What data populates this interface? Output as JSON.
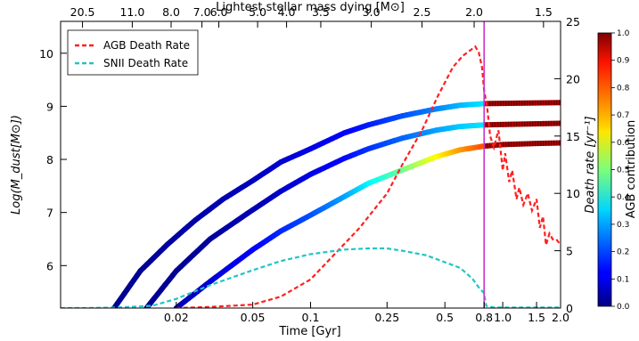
{
  "chart_data": {
    "type": "line",
    "xlabel": "Time [Gyr]",
    "x_scale": "log",
    "xlim": [
      0.005,
      2.0
    ],
    "x_ticks": [
      {
        "value": 0.02,
        "label": "0.02"
      },
      {
        "value": 0.05,
        "label": "0.05"
      },
      {
        "value": 0.1,
        "label": "0.1"
      },
      {
        "value": 0.25,
        "label": "0.25"
      },
      {
        "value": 0.5,
        "label": "0.5"
      },
      {
        "value": 0.8,
        "label": "0.8"
      },
      {
        "value": 1.0,
        "label": "1.0"
      },
      {
        "value": 1.5,
        "label": "1.5"
      },
      {
        "value": 2.0,
        "label": "2.0"
      }
    ],
    "top_axis": {
      "label": "Lightest stellar mass dying [M⊙]",
      "ticks": [
        {
          "time": 0.0065,
          "label": "20.5"
        },
        {
          "time": 0.0118,
          "label": "11.0"
        },
        {
          "time": 0.0188,
          "label": "8.0"
        },
        {
          "time": 0.0272,
          "label": "7.0"
        },
        {
          "time": 0.0333,
          "label": "6.0"
        },
        {
          "time": 0.053,
          "label": "5.0"
        },
        {
          "time": 0.075,
          "label": "4.0"
        },
        {
          "time": 0.113,
          "label": "3.5"
        },
        {
          "time": 0.207,
          "label": "3.0"
        },
        {
          "time": 0.38,
          "label": "2.5"
        },
        {
          "time": 0.71,
          "label": "2.0"
        },
        {
          "time": 1.63,
          "label": "1.5"
        }
      ]
    },
    "ylabel_left": "Log(M_dust[M⊙])",
    "ylim_left": [
      5.2,
      10.6
    ],
    "yticks_left": [
      6,
      7,
      8,
      9,
      10
    ],
    "ylabel_right": "Death rate [yr⁻¹]",
    "ylim_right": [
      0,
      25
    ],
    "yticks_right": [
      0,
      5,
      10,
      15,
      20,
      25
    ],
    "vertical_line": {
      "x": 0.8,
      "color": "#cc33cc"
    },
    "legend": {
      "position": "top-left"
    },
    "rate_series": [
      {
        "name": "AGB Death Rate",
        "color": "#ff2020",
        "axis": "right",
        "x": [
          0.02,
          0.03,
          0.05,
          0.07,
          0.1,
          0.13,
          0.18,
          0.25,
          0.3,
          0.38,
          0.46,
          0.55,
          0.62,
          0.68,
          0.72,
          0.75,
          0.78,
          0.8,
          0.83,
          0.86,
          0.9,
          0.95,
          1.0,
          1.03,
          1.08,
          1.12,
          1.18,
          1.22,
          1.28,
          1.35,
          1.42,
          1.5,
          1.56,
          1.62,
          1.68,
          1.75,
          1.82,
          1.9,
          2.0
        ],
        "y": [
          0,
          0.1,
          0.3,
          1.0,
          2.5,
          4.5,
          7.0,
          10.0,
          12.5,
          15.5,
          18.5,
          21.0,
          22.0,
          22.5,
          22.8,
          22.3,
          21.0,
          19.0,
          17.5,
          15.0,
          14.0,
          15.5,
          12.0,
          13.5,
          11.0,
          12.0,
          9.5,
          10.5,
          9.0,
          10.0,
          8.5,
          9.5,
          7.0,
          8.0,
          5.5,
          6.5,
          6.0,
          6.0,
          5.5
        ]
      },
      {
        "name": "SNII Death Rate",
        "color": "#22c4c4",
        "axis": "right",
        "x": [
          0.005,
          0.007,
          0.01,
          0.015,
          0.02,
          0.03,
          0.05,
          0.07,
          0.1,
          0.15,
          0.2,
          0.25,
          0.3,
          0.4,
          0.5,
          0.6,
          0.65,
          0.7,
          0.75,
          0.8,
          0.82,
          0.9,
          1.0,
          1.5,
          2.0
        ],
        "y": [
          0,
          0,
          0.05,
          0.2,
          0.8,
          2.0,
          3.3,
          4.1,
          4.7,
          5.1,
          5.2,
          5.2,
          5.0,
          4.6,
          4.0,
          3.5,
          3.0,
          2.5,
          1.8,
          1.3,
          0.2,
          0.05,
          0.05,
          0.05,
          0.05
        ]
      }
    ],
    "dust_tracks": [
      {
        "x": [
          0.0095,
          0.013,
          0.018,
          0.025,
          0.035,
          0.05,
          0.07,
          0.1,
          0.15,
          0.2,
          0.3,
          0.45,
          0.6,
          0.8
        ],
        "y": [
          5.2,
          5.9,
          6.4,
          6.85,
          7.25,
          7.6,
          7.95,
          8.2,
          8.5,
          8.65,
          8.82,
          8.95,
          9.02,
          9.05
        ],
        "agb": [
          0.02,
          0.02,
          0.03,
          0.04,
          0.05,
          0.06,
          0.08,
          0.1,
          0.12,
          0.15,
          0.2,
          0.25,
          0.3,
          0.35
        ]
      },
      {
        "x": [
          0.014,
          0.02,
          0.03,
          0.05,
          0.07,
          0.1,
          0.15,
          0.2,
          0.3,
          0.45,
          0.6,
          0.8
        ],
        "y": [
          5.2,
          5.9,
          6.5,
          7.05,
          7.4,
          7.72,
          8.02,
          8.2,
          8.4,
          8.55,
          8.62,
          8.65
        ],
        "agb": [
          0.02,
          0.02,
          0.03,
          0.05,
          0.07,
          0.1,
          0.13,
          0.17,
          0.22,
          0.28,
          0.32,
          0.35
        ]
      },
      {
        "x": [
          0.02,
          0.03,
          0.05,
          0.07,
          0.1,
          0.15,
          0.2,
          0.3,
          0.45,
          0.6,
          0.8
        ],
        "y": [
          5.2,
          5.7,
          6.3,
          6.65,
          6.95,
          7.3,
          7.55,
          7.8,
          8.05,
          8.18,
          8.25
        ],
        "agb": [
          0.05,
          0.08,
          0.12,
          0.16,
          0.2,
          0.28,
          0.36,
          0.48,
          0.62,
          0.72,
          0.8
        ]
      }
    ],
    "post_tracks": [
      {
        "x": [
          0.8,
          2.0
        ],
        "y": [
          9.05,
          9.07
        ],
        "agb": 0.96
      },
      {
        "x": [
          0.8,
          2.0
        ],
        "y": [
          8.65,
          8.68
        ],
        "agb": 0.96
      },
      {
        "x": [
          0.8,
          1.0,
          1.5,
          2.0
        ],
        "y": [
          8.25,
          8.28,
          8.3,
          8.31
        ],
        "agb": 0.96
      }
    ],
    "colorbar": {
      "label": "AGB contribution",
      "range": [
        0,
        1
      ],
      "ticks": [
        "0.0",
        "0.1",
        "0.2",
        "0.3",
        "0.4",
        "0.5",
        "0.6",
        "0.7",
        "0.8",
        "0.9",
        "1.0"
      ],
      "colormap": "jet"
    }
  }
}
